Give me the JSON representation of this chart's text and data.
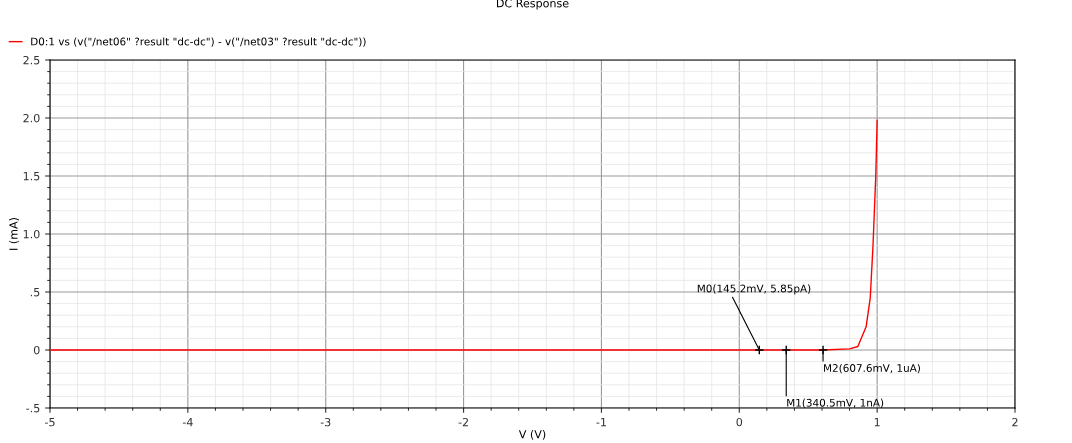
{
  "chart_data": {
    "type": "line",
    "title": "DC Response",
    "xlabel": "V (V)",
    "ylabel": "I (mA)",
    "x": [
      -5,
      0.6,
      0.8,
      0.86,
      0.92,
      0.95,
      0.97,
      0.99,
      1.0
    ],
    "series": [
      {
        "name": "D0:1 vs (v(\"/net06\" ?result \"dc-dc\") - v(\"/net03\" ?result \"dc-dc\"))",
        "color": "#ff0000",
        "values": [
          0,
          0,
          0.01,
          0.03,
          0.2,
          0.45,
          0.9,
          1.5,
          1.98
        ]
      }
    ],
    "xlim": [
      -5,
      2
    ],
    "xticks": [
      -5,
      -4,
      -3,
      -2,
      -1,
      0,
      1,
      2
    ],
    "ylim": [
      -0.5,
      2.5
    ],
    "yticks": [
      {
        "value": -0.5,
        "label": "-.5"
      },
      0,
      {
        "value": 0.5,
        "label": ".5"
      },
      {
        "value": 1.0,
        "label": "1.0"
      },
      {
        "value": 1.5,
        "label": "1.5"
      },
      {
        "value": 2.0,
        "label": "2.0"
      },
      {
        "value": 2.5,
        "label": "2.5"
      }
    ],
    "grid": true,
    "legend": "top left",
    "marker": "none",
    "line_style": "solid",
    "annotations": [
      {
        "text": "M0(145.2mV, 5.85pA)",
        "x": 0.1452,
        "y": 0
      },
      {
        "text": "M1(340.5mV, 1nA)",
        "x": 0.3405,
        "y": 0
      },
      {
        "text": "M2(607.6mV, 1uA)",
        "x": 0.6076,
        "y": 0
      }
    ]
  }
}
